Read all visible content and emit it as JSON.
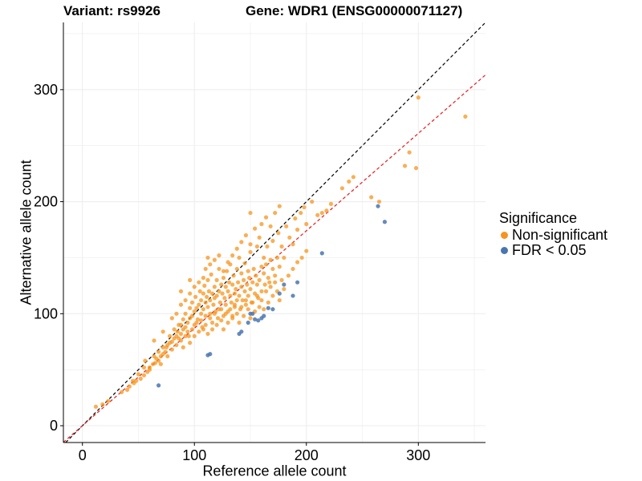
{
  "titles": {
    "variant": "Variant: rs9926",
    "gene": "Gene: WDR1 (ENSG00000071127)"
  },
  "legend": {
    "title": "Significance",
    "items": [
      {
        "label": "Non-significant",
        "color": "#F7941D"
      },
      {
        "label": "FDR < 0.05",
        "color": "#4A76B0"
      }
    ]
  },
  "chart_data": {
    "type": "scatter",
    "xlabel": "Reference allele count",
    "ylabel": "Alternative allele count",
    "xlim": [
      -17,
      360
    ],
    "ylim": [
      -15,
      360
    ],
    "xticks": [
      0,
      100,
      200,
      300
    ],
    "yticks": [
      0,
      100,
      200,
      300
    ],
    "grid": true,
    "legend_position": "right",
    "reference_lines": [
      {
        "description": "identity",
        "slope": 1.0,
        "intercept": 0,
        "color": "#000000",
        "style": "dashed"
      },
      {
        "description": "fit",
        "slope": 0.87,
        "intercept": 0,
        "color": "#E41A1C",
        "style": "dashed"
      }
    ],
    "series": [
      {
        "name": "Non-significant",
        "color": "#F7941D",
        "points": [
          [
            12,
            17
          ],
          [
            18,
            19
          ],
          [
            23,
            22
          ],
          [
            35,
            30
          ],
          [
            42,
            35
          ],
          [
            46,
            38
          ],
          [
            48,
            40
          ],
          [
            52,
            42
          ],
          [
            55,
            45
          ],
          [
            58,
            48
          ],
          [
            60,
            52
          ],
          [
            63,
            55
          ],
          [
            65,
            56
          ],
          [
            66,
            60
          ],
          [
            68,
            58
          ],
          [
            70,
            62
          ],
          [
            72,
            64
          ],
          [
            74,
            66
          ],
          [
            75,
            70
          ],
          [
            76,
            72
          ],
          [
            78,
            74
          ],
          [
            80,
            75
          ],
          [
            82,
            78
          ],
          [
            84,
            80
          ],
          [
            85,
            84
          ],
          [
            86,
            78
          ],
          [
            88,
            82
          ],
          [
            88,
            90
          ],
          [
            90,
            86
          ],
          [
            90,
            95
          ],
          [
            92,
            88
          ],
          [
            92,
            100
          ],
          [
            94,
            92
          ],
          [
            95,
            80
          ],
          [
            96,
            96
          ],
          [
            96,
            105
          ],
          [
            98,
            98
          ],
          [
            98,
            110
          ],
          [
            100,
            102
          ],
          [
            100,
            90
          ],
          [
            101,
            115
          ],
          [
            102,
            105
          ],
          [
            103,
            95
          ],
          [
            104,
            108
          ],
          [
            105,
            120
          ],
          [
            106,
            100
          ],
          [
            106,
            112
          ],
          [
            107,
            88
          ],
          [
            108,
            118
          ],
          [
            108,
            104
          ],
          [
            109,
            125
          ],
          [
            110,
            110
          ],
          [
            110,
            98
          ],
          [
            111,
            115
          ],
          [
            112,
            130
          ],
          [
            112,
            106
          ],
          [
            113,
            120
          ],
          [
            114,
            100
          ],
          [
            114,
            112
          ],
          [
            115,
            135
          ],
          [
            116,
            118
          ],
          [
            116,
            92
          ],
          [
            117,
            108
          ],
          [
            118,
            124
          ],
          [
            118,
            114
          ],
          [
            119,
            102
          ],
          [
            120,
            130
          ],
          [
            120,
            116
          ],
          [
            121,
            96
          ],
          [
            122,
            120
          ],
          [
            122,
            140
          ],
          [
            123,
            110
          ],
          [
            124,
            126
          ],
          [
            124,
            104
          ],
          [
            125,
            118
          ],
          [
            126,
            132
          ],
          [
            126,
            98
          ],
          [
            127,
            114
          ],
          [
            128,
            124
          ],
          [
            128,
            108
          ],
          [
            129,
            138
          ],
          [
            130,
            120
          ],
          [
            130,
            102
          ],
          [
            131,
            128
          ],
          [
            132,
            116
          ],
          [
            132,
            144
          ],
          [
            133,
            110
          ],
          [
            134,
            126
          ],
          [
            134,
            98
          ],
          [
            135,
            134
          ],
          [
            136,
            118
          ],
          [
            136,
            106
          ],
          [
            137,
            122
          ],
          [
            138,
            140
          ],
          [
            138,
            112
          ],
          [
            139,
            128
          ],
          [
            140,
            116
          ],
          [
            140,
            150
          ],
          [
            141,
            104
          ],
          [
            142,
            124
          ],
          [
            142,
            136
          ],
          [
            143,
            112
          ],
          [
            144,
            130
          ],
          [
            145,
            120
          ],
          [
            145,
            145
          ],
          [
            146,
            108
          ],
          [
            147,
            126
          ],
          [
            148,
            138
          ],
          [
            148,
            116
          ],
          [
            149,
            132
          ],
          [
            150,
            122
          ],
          [
            150,
            155
          ],
          [
            151,
            110
          ],
          [
            152,
            128
          ],
          [
            153,
            140
          ],
          [
            154,
            118
          ],
          [
            155,
            134
          ],
          [
            156,
            126
          ],
          [
            156,
            160
          ],
          [
            157,
            114
          ],
          [
            158,
            130
          ],
          [
            160,
            142
          ],
          [
            160,
            120
          ],
          [
            162,
            136
          ],
          [
            162,
            150
          ],
          [
            163,
            126
          ],
          [
            164,
            144
          ],
          [
            165,
            160
          ],
          [
            166,
            132
          ],
          [
            167,
            128
          ],
          [
            168,
            148
          ],
          [
            170,
            140
          ],
          [
            170,
            165
          ],
          [
            172,
            134
          ],
          [
            174,
            150
          ],
          [
            175,
            172
          ],
          [
            176,
            142
          ],
          [
            178,
            160
          ],
          [
            180,
            150
          ],
          [
            182,
            178
          ],
          [
            185,
            168
          ],
          [
            188,
            162
          ],
          [
            190,
            185
          ],
          [
            192,
            175
          ],
          [
            195,
            190
          ],
          [
            198,
            195
          ],
          [
            200,
            180
          ],
          [
            205,
            200
          ],
          [
            210,
            188
          ],
          [
            214,
            190
          ],
          [
            218,
            192
          ],
          [
            222,
            198
          ],
          [
            232,
            212
          ],
          [
            238,
            218
          ],
          [
            242,
            222
          ],
          [
            258,
            204
          ],
          [
            265,
            200
          ],
          [
            288,
            232
          ],
          [
            292,
            244
          ],
          [
            298,
            230
          ],
          [
            300,
            293
          ],
          [
            342,
            276
          ],
          [
            45,
            40
          ],
          [
            50,
            46
          ],
          [
            55,
            52
          ],
          [
            60,
            50
          ],
          [
            64,
            62
          ],
          [
            68,
            66
          ],
          [
            70,
            55
          ],
          [
            72,
            70
          ],
          [
            76,
            62
          ],
          [
            78,
            80
          ],
          [
            80,
            68
          ],
          [
            82,
            86
          ],
          [
            84,
            72
          ],
          [
            86,
            90
          ],
          [
            88,
            76
          ],
          [
            90,
            70
          ],
          [
            92,
            80
          ],
          [
            94,
            84
          ],
          [
            96,
            74
          ],
          [
            98,
            86
          ],
          [
            100,
            80
          ],
          [
            102,
            92
          ],
          [
            104,
            84
          ],
          [
            106,
            94
          ],
          [
            108,
            86
          ],
          [
            110,
            90
          ],
          [
            112,
            82
          ],
          [
            114,
            96
          ],
          [
            116,
            86
          ],
          [
            118,
            100
          ],
          [
            120,
            90
          ],
          [
            122,
            104
          ],
          [
            124,
            94
          ],
          [
            126,
            86
          ],
          [
            128,
            100
          ],
          [
            130,
            92
          ],
          [
            132,
            104
          ],
          [
            134,
            96
          ],
          [
            136,
            108
          ],
          [
            138,
            100
          ],
          [
            140,
            92
          ],
          [
            142,
            106
          ],
          [
            144,
            98
          ],
          [
            146,
            112
          ],
          [
            148,
            104
          ],
          [
            150,
            96
          ],
          [
            152,
            110
          ],
          [
            154,
            102
          ],
          [
            156,
            116
          ],
          [
            158,
            106
          ],
          [
            160,
            112
          ],
          [
            162,
            104
          ],
          [
            164,
            120
          ],
          [
            166,
            110
          ],
          [
            168,
            124
          ],
          [
            170,
            116
          ],
          [
            172,
            128
          ],
          [
            174,
            120
          ],
          [
            176,
            112
          ],
          [
            178,
            130
          ],
          [
            180,
            122
          ],
          [
            184,
            134
          ],
          [
            188,
            140
          ],
          [
            192,
            146
          ],
          [
            196,
            150
          ],
          [
            200,
            156
          ],
          [
            80,
            96
          ],
          [
            84,
            100
          ],
          [
            88,
            108
          ],
          [
            92,
            112
          ],
          [
            96,
            118
          ],
          [
            100,
            124
          ],
          [
            104,
            128
          ],
          [
            108,
            132
          ],
          [
            110,
            140
          ],
          [
            114,
            144
          ],
          [
            118,
            148
          ],
          [
            122,
            152
          ],
          [
            126,
            138
          ],
          [
            130,
            146
          ],
          [
            134,
            152
          ],
          [
            138,
            158
          ],
          [
            142,
            164
          ],
          [
            146,
            170
          ],
          [
            150,
            162
          ],
          [
            154,
            176
          ],
          [
            158,
            168
          ],
          [
            160,
            180
          ],
          [
            164,
            186
          ],
          [
            168,
            178
          ],
          [
            172,
            190
          ],
          [
            176,
            196
          ],
          [
            150,
            190
          ],
          [
            112,
            150
          ],
          [
            96,
            130
          ],
          [
            88,
            120
          ],
          [
            72,
            84
          ],
          [
            64,
            76
          ],
          [
            56,
            58
          ],
          [
            40,
            32
          ]
        ]
      },
      {
        "name": "FDR < 0.05",
        "color": "#4A76B0",
        "points": [
          [
            68,
            36
          ],
          [
            112,
            63
          ],
          [
            114,
            64
          ],
          [
            140,
            82
          ],
          [
            142,
            84
          ],
          [
            148,
            92
          ],
          [
            150,
            100
          ],
          [
            152,
            100
          ],
          [
            154,
            95
          ],
          [
            157,
            94
          ],
          [
            160,
            96
          ],
          [
            162,
            98
          ],
          [
            166,
            105
          ],
          [
            170,
            104
          ],
          [
            176,
            118
          ],
          [
            180,
            126
          ],
          [
            188,
            116
          ],
          [
            192,
            128
          ],
          [
            214,
            154
          ],
          [
            264,
            196
          ],
          [
            270,
            182
          ]
        ]
      }
    ]
  }
}
